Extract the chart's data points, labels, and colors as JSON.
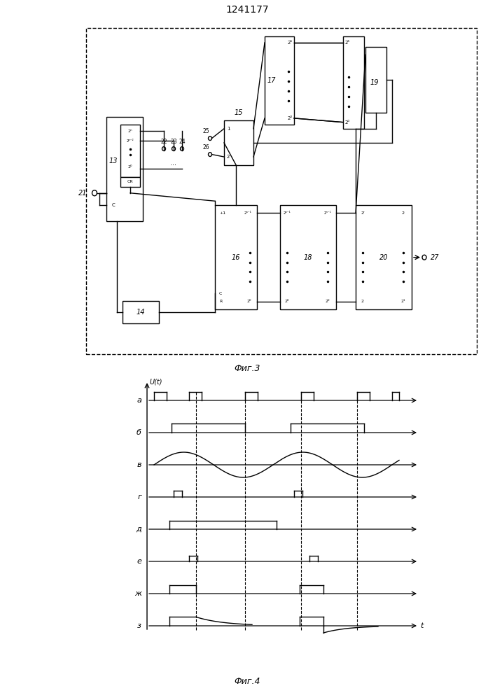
{
  "title": "1241177",
  "fig3_label": "Фиг.3",
  "fig4_label": "Фиг.4",
  "line_color": "#000000",
  "waveform_labels": [
    "а",
    "б",
    "в",
    "г",
    "д",
    "е",
    "ж",
    "з"
  ],
  "ylabel": "U(t)"
}
